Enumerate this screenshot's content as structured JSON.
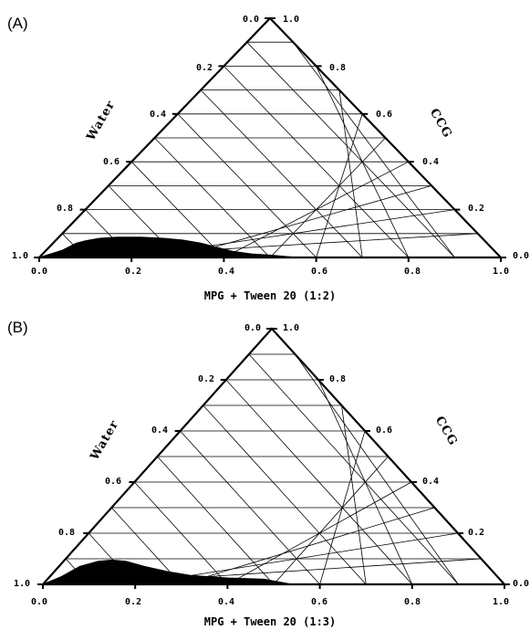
{
  "chart_data": [
    {
      "type": "ternary",
      "panel_label": "(A)",
      "bottom_axis_title": "MPG + Tween 20 (1:2)",
      "left_axis_title": "Water",
      "right_axis_title": "CCG",
      "bottom_ticks": [
        "0.0",
        "0.2",
        "0.4",
        "0.6",
        "0.8",
        "1.0"
      ],
      "left_ticks": [
        "0.0",
        "0.2",
        "0.4",
        "0.6",
        "0.8",
        "1.0"
      ],
      "right_ticks": [
        "1.0",
        "0.8",
        "0.6",
        "0.4",
        "0.2",
        "0.0"
      ],
      "grid": true,
      "region_fill": "#000000",
      "region": [
        [
          0.0,
          0.0
        ],
        [
          0.05,
          0.03
        ],
        [
          0.08,
          0.06
        ],
        [
          0.1,
          0.07
        ],
        [
          0.13,
          0.08
        ],
        [
          0.17,
          0.085
        ],
        [
          0.22,
          0.085
        ],
        [
          0.27,
          0.08
        ],
        [
          0.31,
          0.073
        ],
        [
          0.35,
          0.06
        ],
        [
          0.38,
          0.045
        ],
        [
          0.42,
          0.025
        ],
        [
          0.46,
          0.015
        ],
        [
          0.5,
          0.01
        ],
        [
          0.56,
          0.0
        ]
      ]
    },
    {
      "type": "ternary",
      "panel_label": "(B)",
      "bottom_axis_title": "MPG + Tween 20 (1:3)",
      "left_axis_title": "Water",
      "right_axis_title": "CCG",
      "bottom_ticks": [
        "0.0",
        "0.2",
        "0.4",
        "0.6",
        "0.8",
        "1.0"
      ],
      "left_ticks": [
        "0.0",
        "0.2",
        "0.4",
        "0.6",
        "0.8",
        "1.0"
      ],
      "right_ticks": [
        "1.0",
        "0.8",
        "0.6",
        "0.4",
        "0.2",
        "0.0"
      ],
      "grid": true,
      "region_fill": "#000000",
      "region": [
        [
          0.0,
          0.0
        ],
        [
          0.04,
          0.03
        ],
        [
          0.08,
          0.07
        ],
        [
          0.12,
          0.09
        ],
        [
          0.15,
          0.095
        ],
        [
          0.18,
          0.09
        ],
        [
          0.22,
          0.07
        ],
        [
          0.27,
          0.05
        ],
        [
          0.32,
          0.035
        ],
        [
          0.4,
          0.025
        ],
        [
          0.48,
          0.02
        ],
        [
          0.54,
          0.0
        ]
      ]
    }
  ]
}
